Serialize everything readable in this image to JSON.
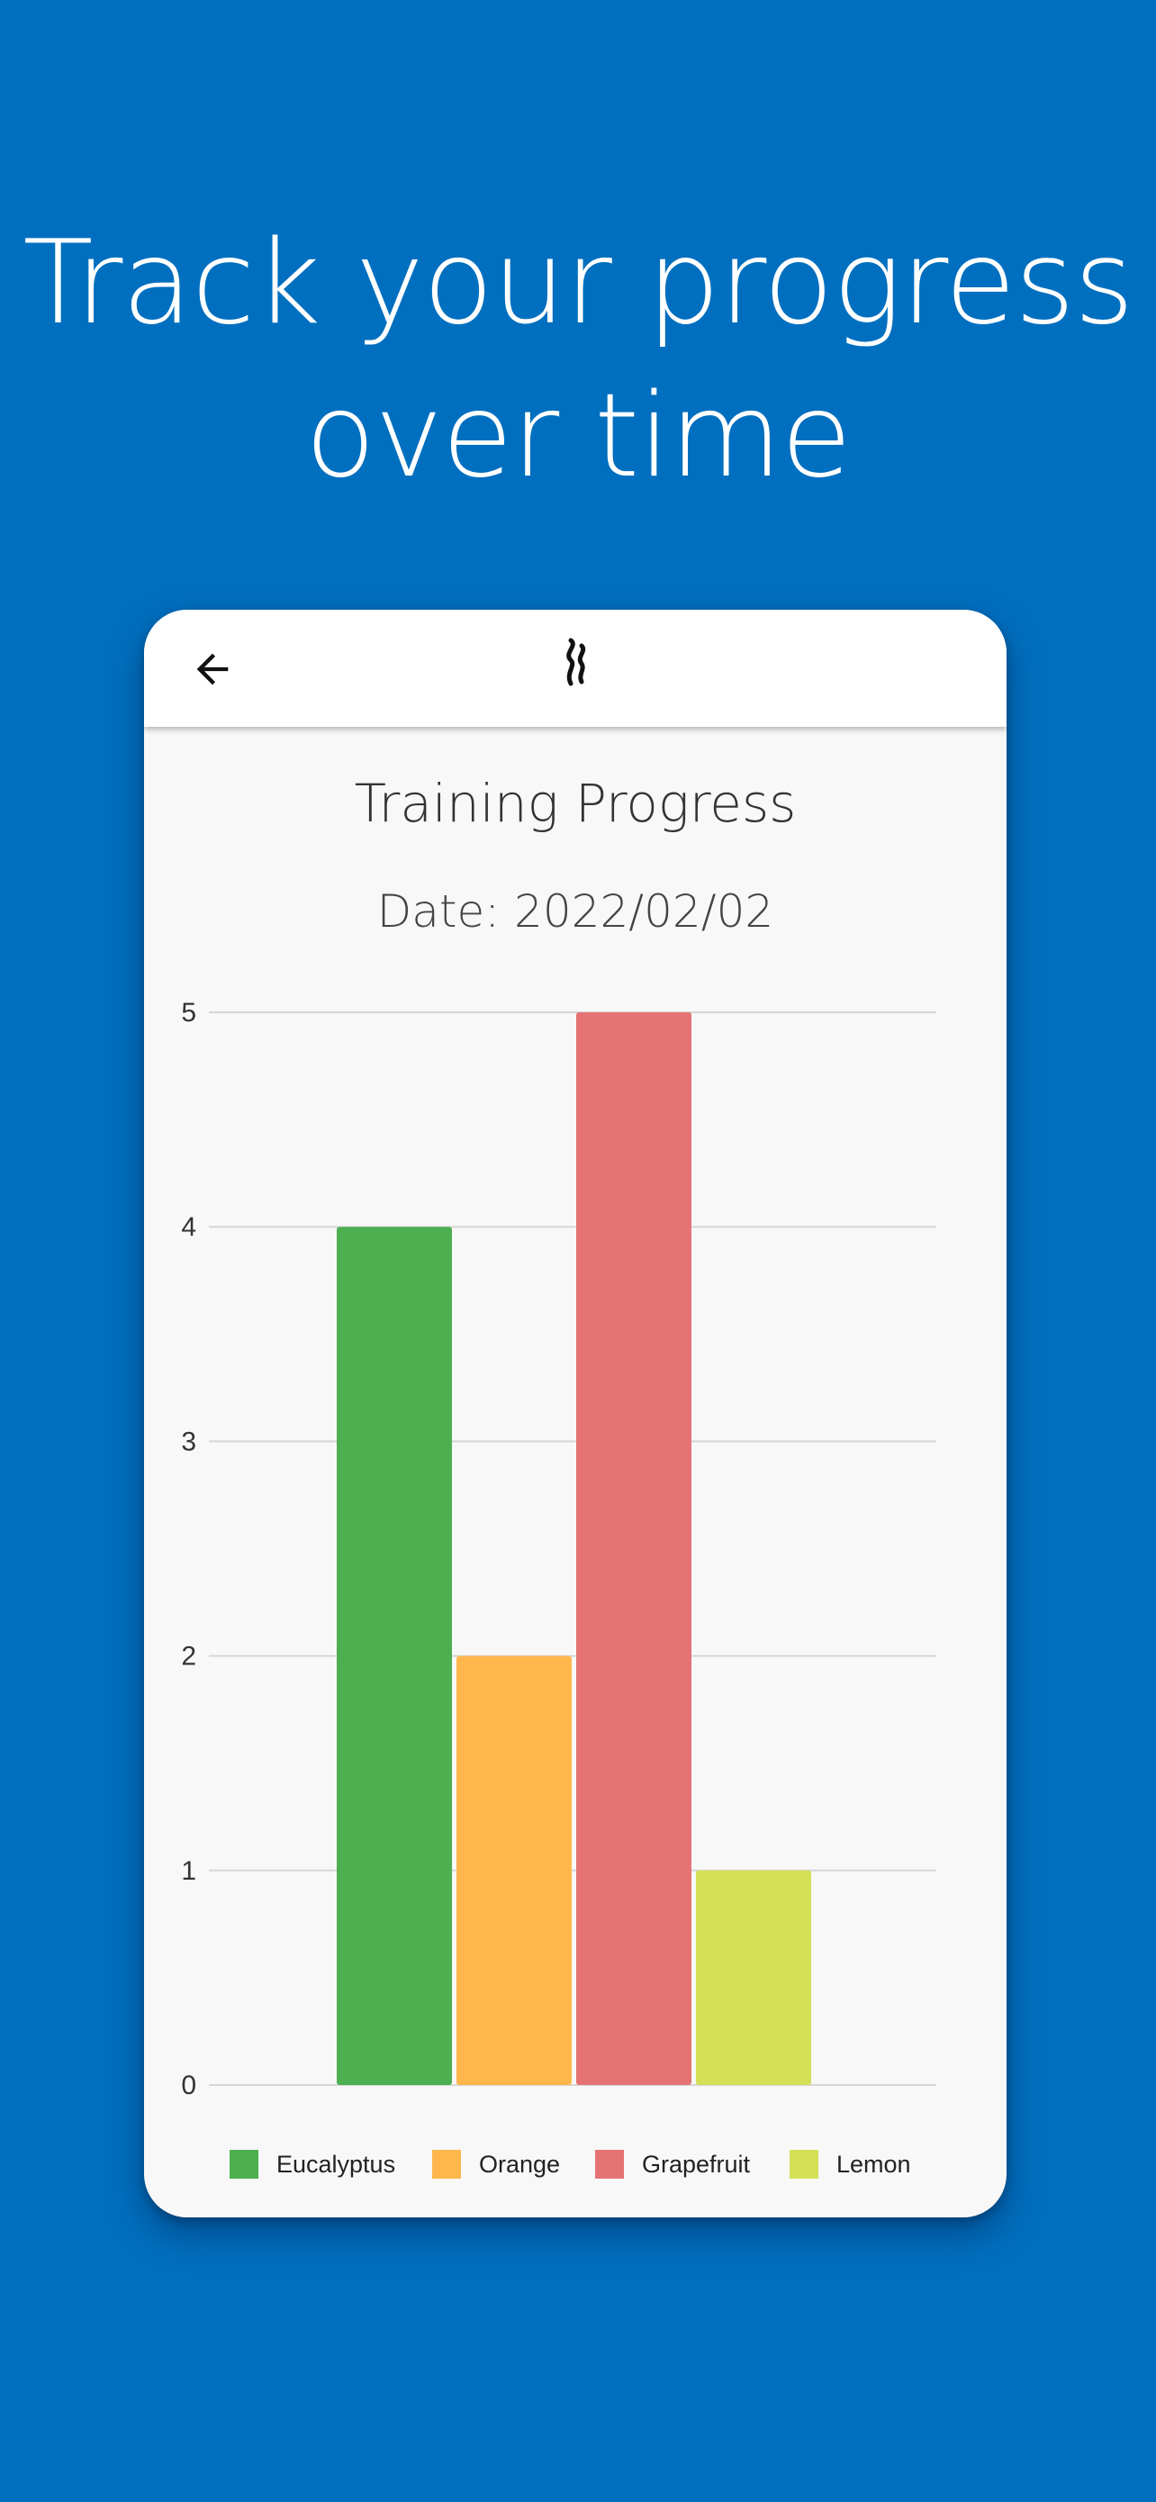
{
  "headline": {
    "line1": "Track your progress",
    "line2": "over time"
  },
  "app_bar": {
    "back_icon": "arrow-left-icon",
    "logo_icon": "aroma-wisp-logo"
  },
  "chart_data": {
    "type": "bar",
    "title": "Training Progress",
    "subtitle": "Date: 2022/02/02",
    "categories": [
      "Eucalyptus",
      "Orange",
      "Grapefruit",
      "Lemon"
    ],
    "values": [
      4,
      2,
      5,
      1
    ],
    "colors": [
      "#4caf50",
      "#ffb74d",
      "#e57373",
      "#d4e157"
    ],
    "ylim": [
      0,
      5
    ],
    "yticks": [
      "0",
      "1",
      "2",
      "3",
      "4",
      "5"
    ],
    "grid": true,
    "legend_position": "bottom",
    "xlabel": "",
    "ylabel": ""
  },
  "colors": {
    "background": "#006fbf",
    "card": "#f8f8f8",
    "appbar": "#ffffff"
  }
}
